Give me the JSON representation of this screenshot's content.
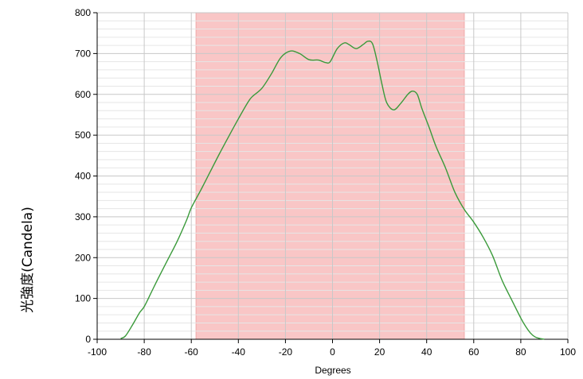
{
  "chart_data": {
    "type": "line",
    "title": "",
    "xlabel": "Degrees",
    "ylabel": "光強度(Candela)",
    "xlim": [
      -100,
      100
    ],
    "ylim": [
      0,
      800
    ],
    "x_ticks": [
      -100,
      -80,
      -60,
      -40,
      -20,
      0,
      20,
      40,
      60,
      80,
      100
    ],
    "y_ticks": [
      0,
      100,
      200,
      300,
      400,
      500,
      600,
      700,
      800
    ],
    "x_tick_labels": [
      "-100",
      "-80",
      "-60",
      "-40",
      "-20",
      "0",
      "20",
      "40",
      "60",
      "80",
      "100"
    ],
    "y_tick_labels": [
      "0",
      "100",
      "200",
      "300",
      "400",
      "500",
      "600",
      "700",
      "800"
    ],
    "grid": true,
    "highlight_band": {
      "x_start": -58,
      "x_end": 56
    },
    "series": [
      {
        "color": "#3a9a3a",
        "x": [
          -90,
          -88,
          -85,
          -82,
          -80,
          -77,
          -74,
          -70,
          -66,
          -62,
          -60,
          -56,
          -52,
          -48,
          -44,
          -40,
          -36,
          -34,
          -30,
          -26,
          -22,
          -18,
          -14,
          -10,
          -6,
          -3,
          -1,
          2,
          5,
          7,
          10,
          13,
          15,
          17,
          19,
          21,
          23,
          26,
          29,
          32,
          34,
          36,
          38,
          41,
          44,
          48,
          52,
          56,
          60,
          64,
          68,
          72,
          76,
          80,
          82,
          84,
          86,
          88,
          90
        ],
        "y": [
          2,
          8,
          35,
          65,
          80,
          115,
          150,
          195,
          240,
          292,
          322,
          365,
          410,
          455,
          498,
          540,
          580,
          595,
          615,
          650,
          690,
          706,
          700,
          685,
          684,
          678,
          680,
          712,
          726,
          722,
          712,
          722,
          730,
          724,
          680,
          625,
          580,
          562,
          578,
          600,
          608,
          600,
          565,
          520,
          472,
          420,
          360,
          318,
          287,
          250,
          205,
          145,
          98,
          52,
          32,
          16,
          6,
          2,
          0
        ]
      }
    ]
  }
}
